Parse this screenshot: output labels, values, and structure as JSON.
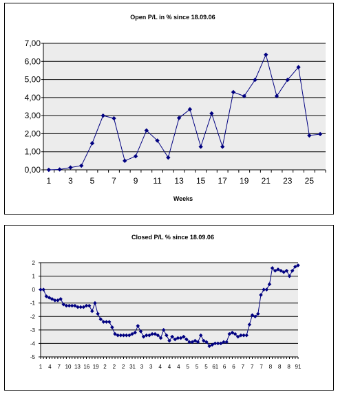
{
  "chart_data": [
    {
      "type": "line",
      "title": "Open P/L in % since 18.09.06",
      "xlabel": "Weeks",
      "ylabel": "",
      "ylim": [
        0,
        7
      ],
      "yticks": [
        "0,00",
        "1,00",
        "2,00",
        "3,00",
        "4,00",
        "5,00",
        "6,00",
        "7,00"
      ],
      "xticks": [
        "1",
        "3",
        "5",
        "7",
        "9",
        "11",
        "13",
        "15",
        "17",
        "19",
        "21",
        "23",
        "25"
      ],
      "x": [
        1,
        2,
        3,
        4,
        5,
        6,
        7,
        8,
        9,
        10,
        11,
        12,
        13,
        14,
        15,
        16,
        17,
        18,
        19,
        20,
        21,
        22,
        23,
        24,
        25,
        26
      ],
      "series": [
        {
          "values": [
            0.0,
            0.02,
            0.13,
            0.23,
            1.47,
            3.0,
            2.85,
            0.5,
            0.75,
            2.18,
            1.62,
            0.68,
            2.87,
            3.35,
            1.28,
            3.12,
            1.28,
            4.3,
            4.08,
            4.98,
            6.37,
            4.08,
            4.98,
            5.68,
            1.9,
            1.98
          ]
        }
      ],
      "grid": true,
      "plot_bg": "#ececec",
      "line_color": "#000080"
    },
    {
      "type": "line",
      "title": "Closed P/L % since 18.09.06",
      "ylim": [
        -5,
        2
      ],
      "yticks": [
        "2",
        "1",
        "0",
        "-1",
        "-2",
        "-3",
        "-4",
        "-5"
      ],
      "xticks": [
        "1",
        "4",
        "7",
        "10",
        "13",
        "16",
        "19",
        "2",
        "2",
        "2",
        "31",
        "3",
        "3",
        "4",
        "4",
        "4",
        "5",
        "5",
        "5",
        "61",
        "6",
        "6",
        "7",
        "7",
        "7",
        "8",
        "8",
        "8",
        "91"
      ],
      "x_note": "categories 1..91",
      "series": [
        {
          "values": [
            0.0,
            0.0,
            -0.5,
            -0.6,
            -0.7,
            -0.8,
            -0.8,
            -0.7,
            -1.1,
            -1.2,
            -1.2,
            -1.2,
            -1.2,
            -1.3,
            -1.3,
            -1.3,
            -1.2,
            -1.2,
            -1.6,
            -1.0,
            -1.8,
            -2.2,
            -2.4,
            -2.4,
            -2.4,
            -2.8,
            -3.3,
            -3.4,
            -3.4,
            -3.4,
            -3.4,
            -3.4,
            -3.3,
            -3.2,
            -2.7,
            -3.1,
            -3.5,
            -3.4,
            -3.4,
            -3.3,
            -3.3,
            -3.4,
            -3.6,
            -3.0,
            -3.4,
            -3.8,
            -3.5,
            -3.7,
            -3.6,
            -3.6,
            -3.5,
            -3.7,
            -3.9,
            -3.9,
            -3.8,
            -3.9,
            -3.4,
            -3.8,
            -3.9,
            -4.2,
            -4.1,
            -4.0,
            -4.0,
            -4.0,
            -3.9,
            -3.9,
            -3.3,
            -3.2,
            -3.3,
            -3.5,
            -3.4,
            -3.4,
            -3.4,
            -2.6,
            -1.9,
            -2.0,
            -1.8,
            -0.4,
            0.0,
            0.0,
            0.4,
            1.6,
            1.4,
            1.5,
            1.4,
            1.3,
            1.4,
            1.0,
            1.4,
            1.7,
            1.8
          ]
        }
      ],
      "grid": true,
      "plot_bg": "#ececec",
      "line_color": "#000080"
    }
  ]
}
